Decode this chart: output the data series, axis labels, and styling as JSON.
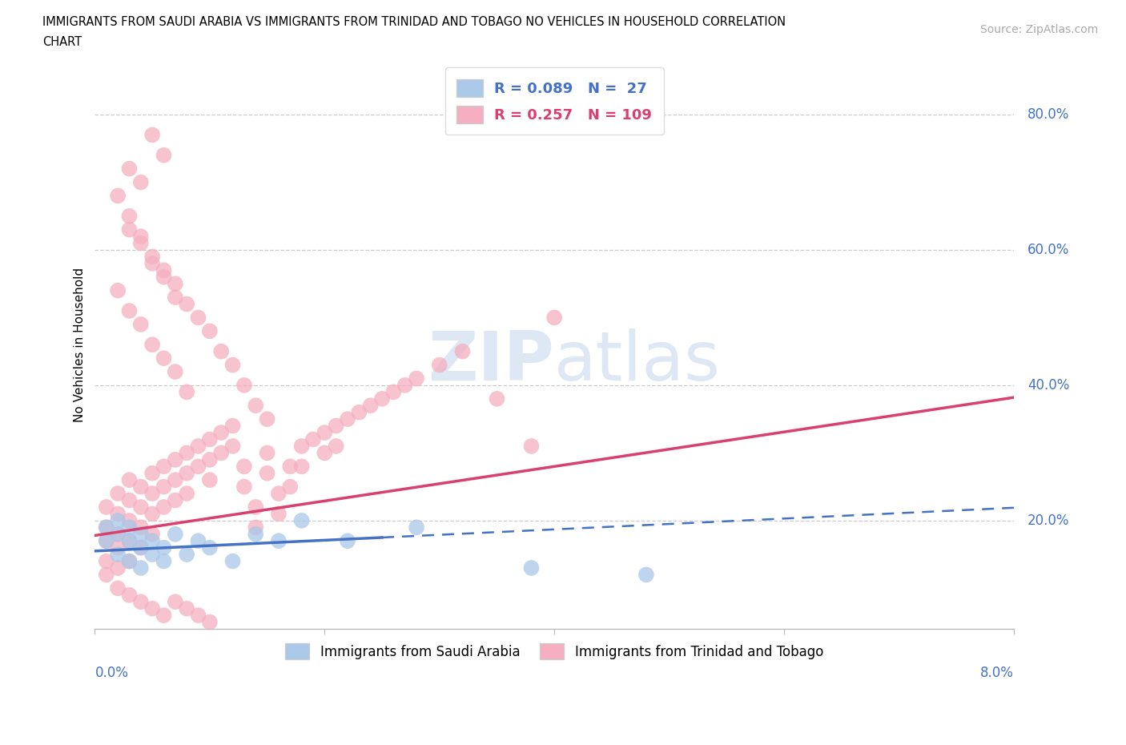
{
  "title_line1": "IMMIGRANTS FROM SAUDI ARABIA VS IMMIGRANTS FROM TRINIDAD AND TOBAGO NO VEHICLES IN HOUSEHOLD CORRELATION",
  "title_line2": "CHART",
  "source": "Source: ZipAtlas.com",
  "ylabel": "No Vehicles in Household",
  "xmin": 0.0,
  "xmax": 0.08,
  "ymin": 0.04,
  "ymax": 0.88,
  "ytick_vals": [
    0.2,
    0.4,
    0.6,
    0.8
  ],
  "xtick_vals": [
    0.0,
    0.02,
    0.04,
    0.06,
    0.08
  ],
  "blue_R": 0.089,
  "blue_N": 27,
  "pink_R": 0.257,
  "pink_N": 109,
  "blue_scatter_color": "#aac8e8",
  "pink_scatter_color": "#f5afc0",
  "blue_line_color": "#4472c4",
  "pink_line_color": "#d94070",
  "axis_color": "#4472c4",
  "grid_color": "#cccccc",
  "blue_line_intercept": 0.155,
  "blue_line_slope": 0.8,
  "blue_line_solid_end": 0.025,
  "pink_line_intercept": 0.178,
  "pink_line_slope": 2.55,
  "blue_x": [
    0.001,
    0.001,
    0.002,
    0.002,
    0.002,
    0.003,
    0.003,
    0.003,
    0.004,
    0.004,
    0.004,
    0.005,
    0.005,
    0.006,
    0.006,
    0.007,
    0.008,
    0.009,
    0.01,
    0.012,
    0.014,
    0.016,
    0.018,
    0.022,
    0.028,
    0.038,
    0.048
  ],
  "blue_y": [
    0.19,
    0.17,
    0.2,
    0.18,
    0.15,
    0.19,
    0.17,
    0.14,
    0.18,
    0.16,
    0.13,
    0.17,
    0.15,
    0.16,
    0.14,
    0.18,
    0.15,
    0.17,
    0.16,
    0.14,
    0.18,
    0.17,
    0.2,
    0.17,
    0.19,
    0.13,
    0.12
  ],
  "pink_x": [
    0.001,
    0.001,
    0.001,
    0.001,
    0.001,
    0.002,
    0.002,
    0.002,
    0.002,
    0.002,
    0.003,
    0.003,
    0.003,
    0.003,
    0.003,
    0.004,
    0.004,
    0.004,
    0.004,
    0.005,
    0.005,
    0.005,
    0.005,
    0.006,
    0.006,
    0.006,
    0.007,
    0.007,
    0.007,
    0.008,
    0.008,
    0.008,
    0.009,
    0.009,
    0.01,
    0.01,
    0.01,
    0.011,
    0.011,
    0.012,
    0.012,
    0.013,
    0.013,
    0.014,
    0.014,
    0.015,
    0.015,
    0.016,
    0.016,
    0.017,
    0.017,
    0.018,
    0.018,
    0.019,
    0.02,
    0.02,
    0.021,
    0.021,
    0.022,
    0.023,
    0.024,
    0.025,
    0.026,
    0.027,
    0.028,
    0.03,
    0.032,
    0.035,
    0.038,
    0.04,
    0.002,
    0.003,
    0.004,
    0.005,
    0.006,
    0.007,
    0.008,
    0.002,
    0.003,
    0.004,
    0.005,
    0.006,
    0.007,
    0.008,
    0.009,
    0.01,
    0.011,
    0.012,
    0.013,
    0.014,
    0.015,
    0.003,
    0.004,
    0.005,
    0.006,
    0.003,
    0.004,
    0.005,
    0.006,
    0.007,
    0.002,
    0.003,
    0.004,
    0.005,
    0.006,
    0.007,
    0.008,
    0.009,
    0.01
  ],
  "pink_y": [
    0.22,
    0.19,
    0.17,
    0.14,
    0.12,
    0.24,
    0.21,
    0.18,
    0.16,
    0.13,
    0.26,
    0.23,
    0.2,
    0.17,
    0.14,
    0.25,
    0.22,
    0.19,
    0.16,
    0.27,
    0.24,
    0.21,
    0.18,
    0.28,
    0.25,
    0.22,
    0.29,
    0.26,
    0.23,
    0.3,
    0.27,
    0.24,
    0.31,
    0.28,
    0.32,
    0.29,
    0.26,
    0.33,
    0.3,
    0.34,
    0.31,
    0.28,
    0.25,
    0.22,
    0.19,
    0.3,
    0.27,
    0.24,
    0.21,
    0.28,
    0.25,
    0.31,
    0.28,
    0.32,
    0.33,
    0.3,
    0.34,
    0.31,
    0.35,
    0.36,
    0.37,
    0.38,
    0.39,
    0.4,
    0.41,
    0.43,
    0.45,
    0.38,
    0.31,
    0.5,
    0.54,
    0.51,
    0.49,
    0.46,
    0.44,
    0.42,
    0.39,
    0.68,
    0.65,
    0.62,
    0.59,
    0.57,
    0.55,
    0.52,
    0.5,
    0.48,
    0.45,
    0.43,
    0.4,
    0.37,
    0.35,
    0.72,
    0.7,
    0.77,
    0.74,
    0.63,
    0.61,
    0.58,
    0.56,
    0.53,
    0.1,
    0.09,
    0.08,
    0.07,
    0.06,
    0.08,
    0.07,
    0.06,
    0.05
  ]
}
